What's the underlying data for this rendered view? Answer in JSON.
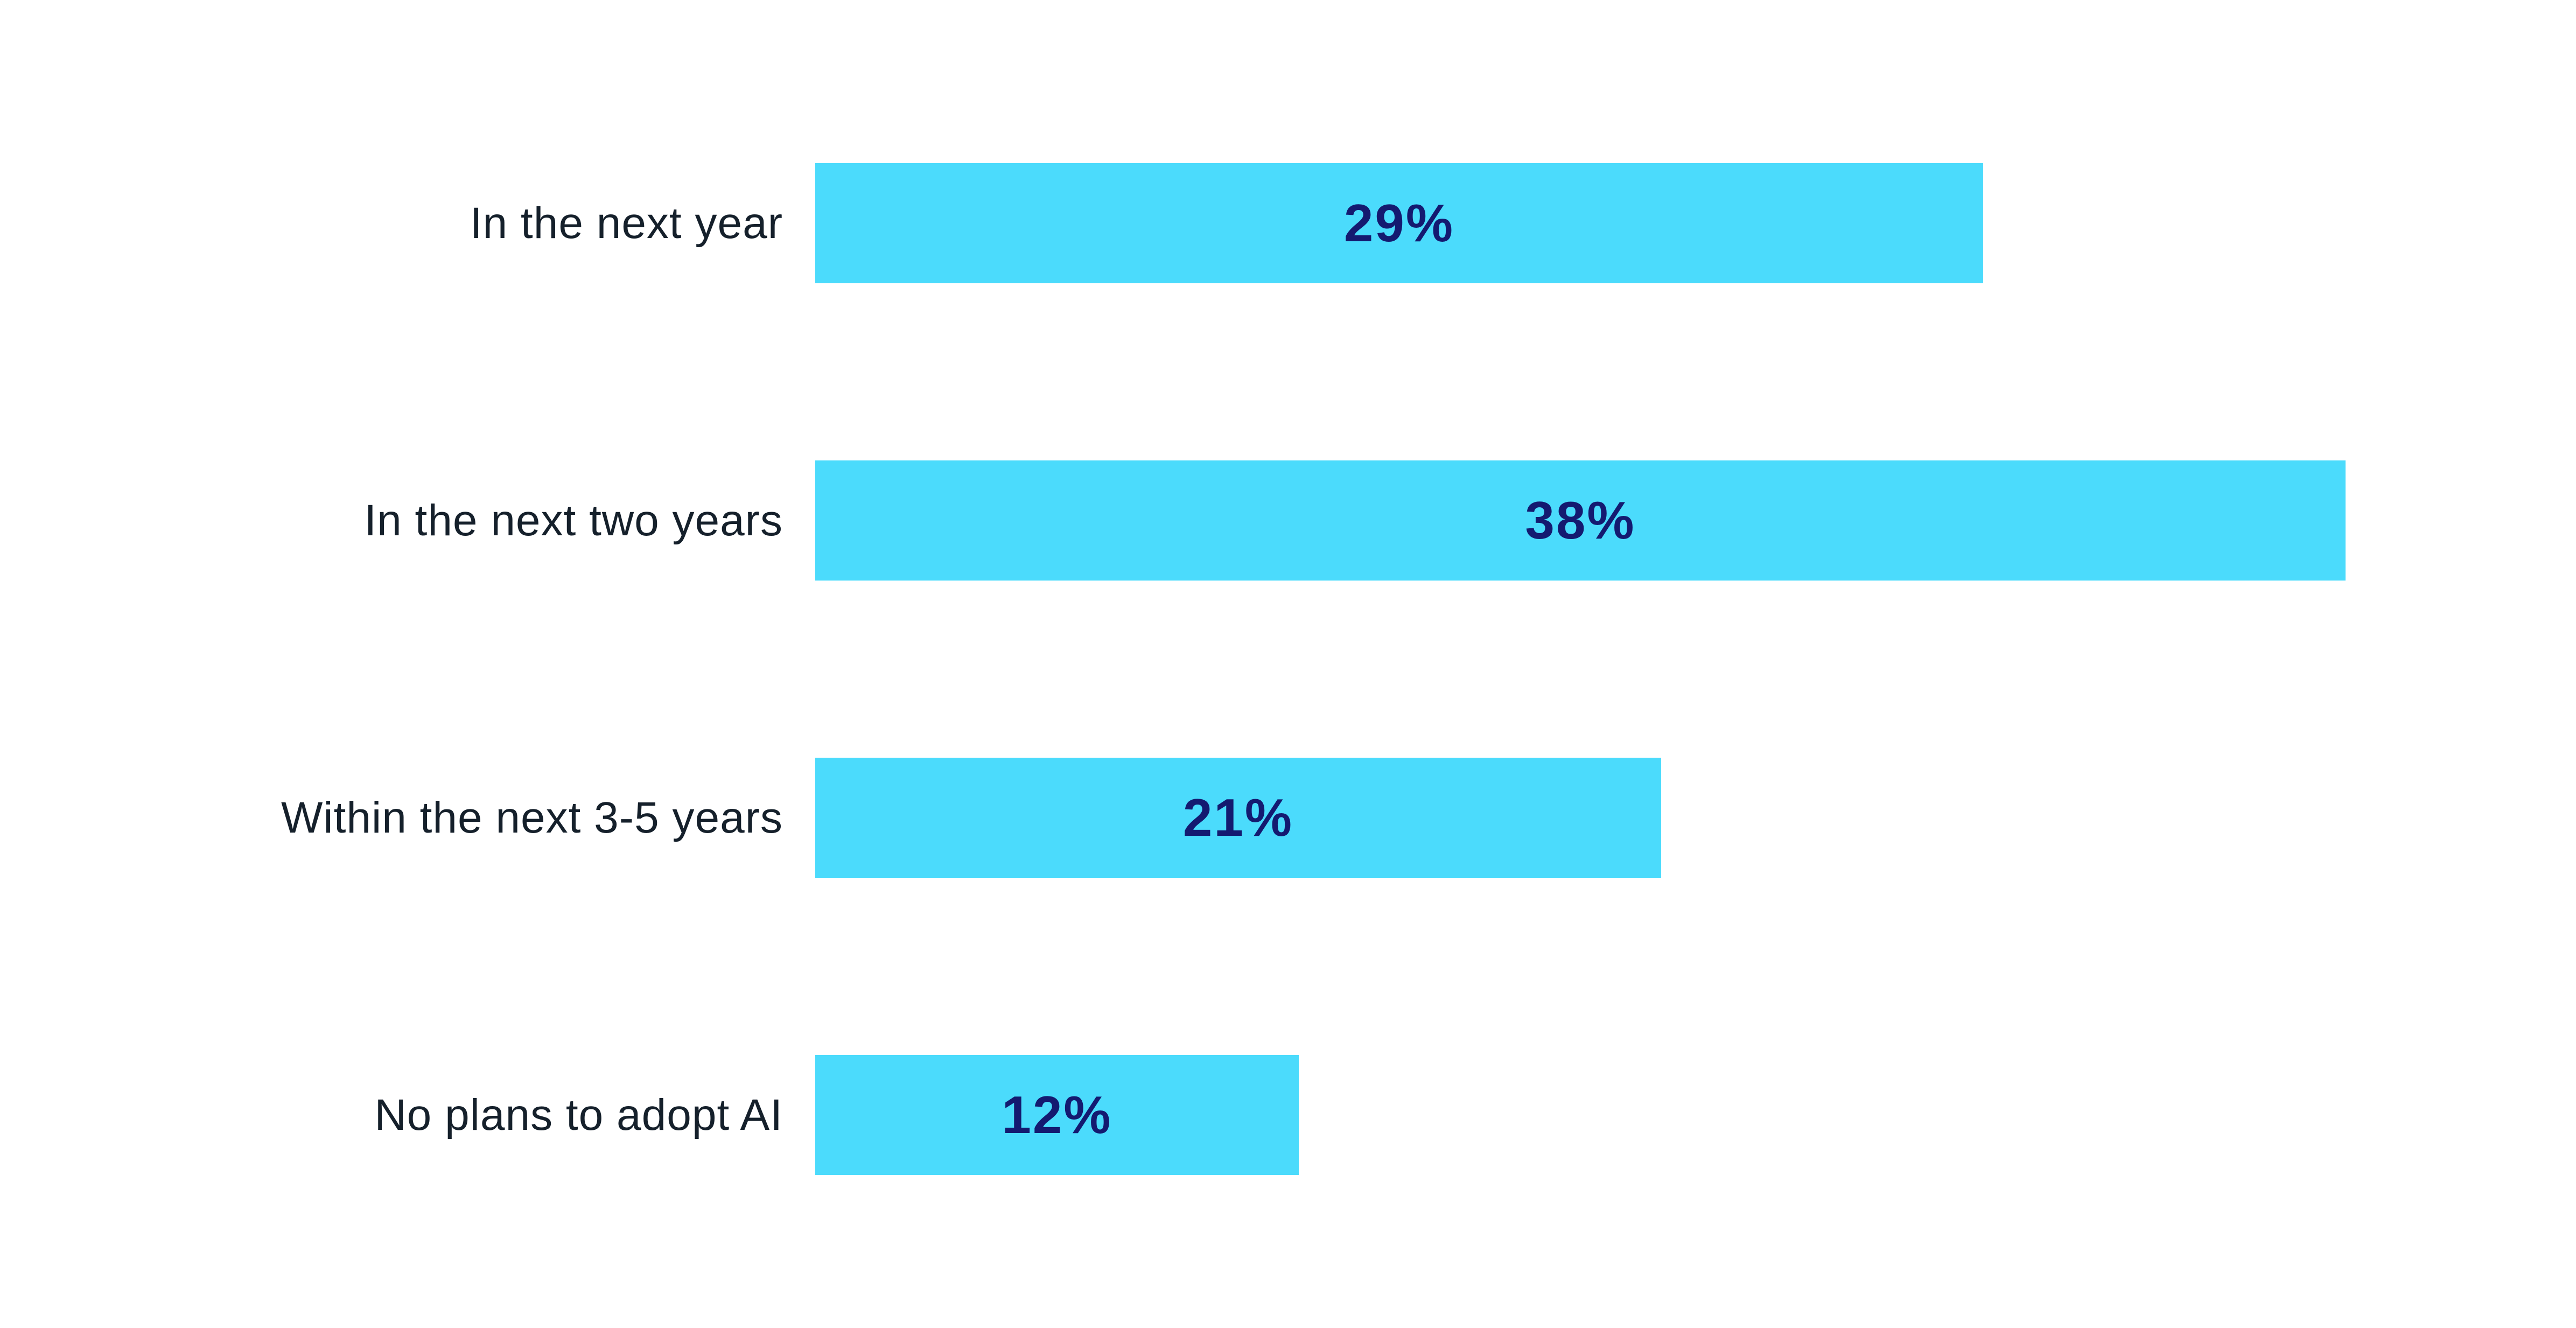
{
  "chart_data": {
    "type": "bar",
    "orientation": "horizontal",
    "title": "",
    "xlabel": "",
    "ylabel": "",
    "grid": false,
    "legend": false,
    "categories": [
      "In the next year",
      "In the next two years",
      "Within the next 3-5 years",
      "No plans to adopt AI"
    ],
    "values": [
      29,
      38,
      21,
      12
    ],
    "value_labels": [
      "29%",
      "38%",
      "21%",
      "12%"
    ],
    "xlim": [
      0,
      43.7
    ],
    "colors": {
      "bar": "#4BDBFC",
      "value_text": "#141A70",
      "category_text": "#15202B",
      "background": "#FFFFFF"
    }
  }
}
